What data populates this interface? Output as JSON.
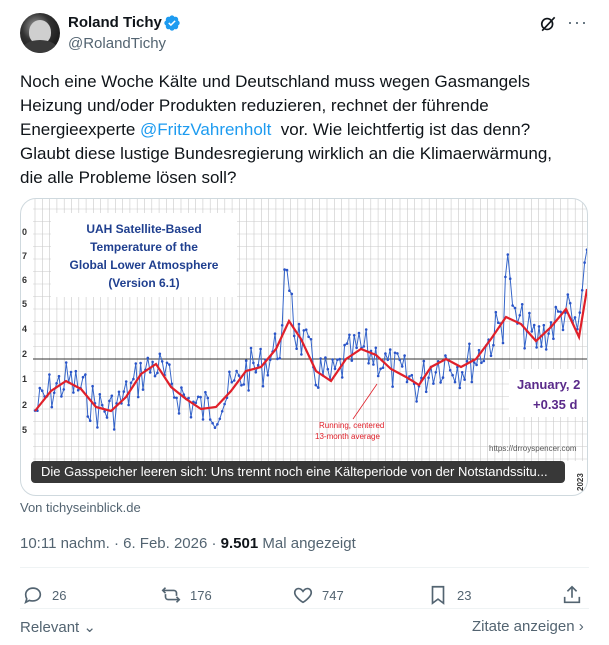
{
  "author": {
    "name": "Roland Tichy",
    "handle": "@RolandTichy"
  },
  "tweet": {
    "text_part1": "Noch eine Woche Kälte und Deutschland muss wegen Gasmangels\nHeizung und/oder Produkten reduzieren, rechnet der führende\nEnergieexperte ",
    "mention": "@FritzVahrenholt",
    "text_part2": "  vor. Wie leichtfertig ist das denn?\nGlaubt diese lustige Bundesregierung wirklich an die Klimaerwärmung,\ndie alle Probleme lösen soll?"
  },
  "card": {
    "chart_title": [
      "UAH Satellite-Based",
      "Temperature of the",
      "Global Lower Atmosphere",
      "(Version 6.1)"
    ],
    "month_label": "January, 2",
    "anomaly_label": "+0.35 d",
    "running_label": [
      "Running, centered",
      "13-month average"
    ],
    "credit": "https://drroyspencer.com",
    "year_label": "2023",
    "caption": "Die Gasspeicher leeren sich: Uns trennt noch eine Kälteperiode von der Notstandssitu..."
  },
  "source": "Von tichyseinblick.de",
  "meta": {
    "time": "10:11 nachm. · 6. Feb. 2026 · ",
    "views": "9.501",
    "views_label": " Mal angezeigt"
  },
  "actions": {
    "replies": "26",
    "reposts": "176",
    "likes": "747",
    "bookmarks": "23"
  },
  "footer": {
    "relevant": "Relevant",
    "zitate": "Zitate anzeigen"
  },
  "colors": {
    "accent": "#1d9bf0",
    "chart_blue": "#2b55c9",
    "chart_red": "#e0202a",
    "title_navy": "#1f3f8f",
    "label_purple": "#5a2a8a"
  }
}
